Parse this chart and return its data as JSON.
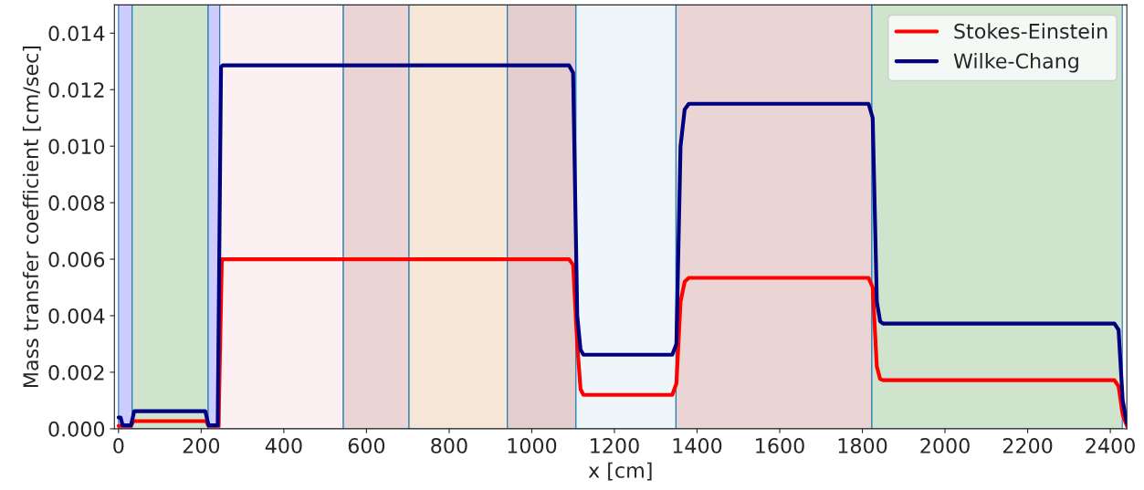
{
  "chart_data": {
    "type": "line",
    "xlabel": "x [cm]",
    "ylabel": "Mass transfer coefficient [cm/sec]",
    "xlim": [
      -10,
      2440
    ],
    "xticks": [
      0,
      200,
      400,
      600,
      800,
      1000,
      1200,
      1400,
      1600,
      1800,
      2000,
      2200,
      2400
    ],
    "ylim": [
      0,
      0.015
    ],
    "yticks": [
      {
        "value": 0,
        "label": "0.000"
      },
      0.002,
      0.004,
      0.006,
      0.008,
      {
        "value": 0.01,
        "label": "0.010"
      },
      0.012,
      0.014
    ],
    "grid": false,
    "legend": "top right",
    "line_style": "solid",
    "series": [
      {
        "name": "Stokes-Einstein",
        "color": "#ff0000",
        "x": [
          0,
          30,
          36,
          212,
          218,
          242,
          250,
          1090,
          1100,
          1110,
          1118,
          1125,
          1340,
          1350,
          1360,
          1370,
          1380,
          1815,
          1825,
          1835,
          1843,
          1850,
          2410,
          2420,
          2430,
          2440
        ],
        "values": [
          0.0001,
          0.0001,
          0.00027,
          0.00027,
          0.0001,
          0.0001,
          0.006,
          0.006,
          0.0058,
          0.003,
          0.0014,
          0.0012,
          0.0012,
          0.0016,
          0.0045,
          0.0052,
          0.00534,
          0.00534,
          0.005,
          0.0022,
          0.00176,
          0.00172,
          0.00172,
          0.0015,
          0.0005,
          0.0001
        ]
      },
      {
        "name": "Wilke-Chang",
        "color": "#000080",
        "x": [
          0,
          5,
          10,
          30,
          38,
          210,
          218,
          240,
          248,
          252,
          1090,
          1100,
          1110,
          1118,
          1125,
          1340,
          1350,
          1360,
          1370,
          1380,
          1815,
          1825,
          1835,
          1843,
          1850,
          2410,
          2420,
          2430,
          2440
        ],
        "values": [
          0.0004,
          0.0004,
          0.00012,
          0.00012,
          0.00062,
          0.00062,
          0.00012,
          0.00012,
          0.0128,
          0.01286,
          0.01286,
          0.0126,
          0.004,
          0.0028,
          0.00262,
          0.00262,
          0.003,
          0.01,
          0.0113,
          0.0115,
          0.0115,
          0.011,
          0.0045,
          0.0038,
          0.00372,
          0.00372,
          0.0035,
          0.001,
          0.0002
        ]
      }
    ],
    "bands": [
      {
        "axis": "x",
        "from": 0,
        "to": 33,
        "color": "#ccccff"
      },
      {
        "axis": "x",
        "from": 33,
        "to": 217,
        "color": "#cfe3cd"
      },
      {
        "axis": "x",
        "from": 217,
        "to": 245,
        "color": "#ccccff"
      },
      {
        "axis": "x",
        "from": 245,
        "to": 544,
        "color": "#fdf0f2"
      },
      {
        "axis": "x",
        "from": 544,
        "to": 703,
        "color": "#ead4d4"
      },
      {
        "axis": "x",
        "from": 703,
        "to": 941,
        "color": "#f5e6d8"
      },
      {
        "axis": "x",
        "from": 941,
        "to": 1107,
        "color": "#e4cdcd"
      },
      {
        "axis": "x",
        "from": 1107,
        "to": 1349,
        "color": "#eef6fa"
      },
      {
        "axis": "x",
        "from": 1349,
        "to": 1823,
        "color": "#ead4d4"
      },
      {
        "axis": "x",
        "from": 1823,
        "to": 2429,
        "color": "#cfe3cd"
      }
    ]
  }
}
